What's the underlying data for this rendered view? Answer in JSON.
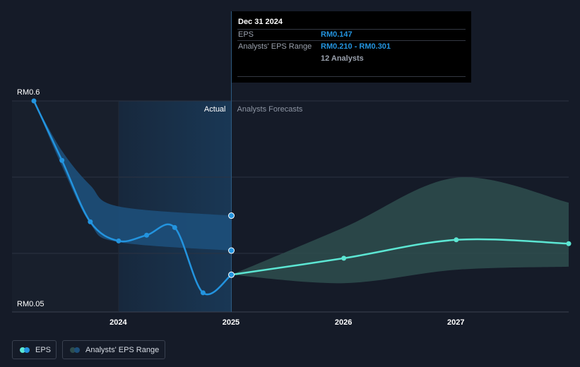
{
  "tooltip": {
    "date": "Dec 31 2024",
    "eps_label": "EPS",
    "eps_value": "RM0.147",
    "range_label": "Analysts' EPS Range",
    "range_value": "RM0.210 - RM0.301",
    "analysts": "12 Analysts"
  },
  "legend": {
    "eps": "EPS",
    "range": "Analysts' EPS Range"
  },
  "colors": {
    "background": "#151b28",
    "eps_line": "#2394df",
    "forecast_line": "#5ce6d3",
    "forecast_band": "#2e4d4d",
    "actual_band": "#1d4f7a",
    "grid": "#2c3342"
  },
  "chart_data": {
    "type": "line",
    "y_tick_labels": [
      "RM0.6",
      "RM0.05"
    ],
    "ylim": [
      0.05,
      0.6
    ],
    "x_tick_labels": [
      "2024",
      "2025",
      "2026",
      "2027"
    ],
    "x_range": [
      "2023-03-31",
      "2027-12-31"
    ],
    "section_labels": {
      "actual": "Actual",
      "forecast": "Analysts Forecasts"
    },
    "highlight_date": "2024-12-31",
    "actual_start": "2023-12-31",
    "series": [
      {
        "name": "EPS",
        "kind": "actual",
        "points": [
          {
            "date": "2023-03-31",
            "value": 0.6
          },
          {
            "date": "2023-06-30",
            "value": 0.445
          },
          {
            "date": "2023-09-30",
            "value": 0.285
          },
          {
            "date": "2023-12-31",
            "value": 0.235
          },
          {
            "date": "2024-03-31",
            "value": 0.25
          },
          {
            "date": "2024-06-30",
            "value": 0.27
          },
          {
            "date": "2024-09-30",
            "value": 0.1
          },
          {
            "date": "2024-12-31",
            "value": 0.147
          }
        ]
      },
      {
        "name": "EPS",
        "kind": "forecast",
        "points": [
          {
            "date": "2024-12-31",
            "value": 0.147
          },
          {
            "date": "2025-12-31",
            "value": 0.19
          },
          {
            "date": "2026-12-31",
            "value": 0.238
          },
          {
            "date": "2027-12-31",
            "value": 0.228
          }
        ]
      }
    ],
    "actual_range": {
      "name": "Analysts' EPS Range",
      "upper": [
        {
          "date": "2023-03-31",
          "value": 0.6
        },
        {
          "date": "2023-06-30",
          "value": 0.47
        },
        {
          "date": "2023-09-30",
          "value": 0.38
        },
        {
          "date": "2023-12-31",
          "value": 0.325
        },
        {
          "date": "2024-12-31",
          "value": 0.301
        }
      ],
      "lower": [
        {
          "date": "2023-03-31",
          "value": 0.6
        },
        {
          "date": "2023-06-30",
          "value": 0.43
        },
        {
          "date": "2023-09-30",
          "value": 0.28
        },
        {
          "date": "2023-12-31",
          "value": 0.232
        },
        {
          "date": "2024-12-31",
          "value": 0.21
        }
      ],
      "markers": [
        0.301,
        0.21
      ]
    },
    "forecast_range": {
      "name": "Analysts' EPS Range",
      "upper": [
        {
          "date": "2024-12-31",
          "value": 0.147
        },
        {
          "date": "2025-12-31",
          "value": 0.27
        },
        {
          "date": "2026-12-31",
          "value": 0.4
        },
        {
          "date": "2027-12-31",
          "value": 0.335
        }
      ],
      "lower": [
        {
          "date": "2024-12-31",
          "value": 0.147
        },
        {
          "date": "2025-12-31",
          "value": 0.125
        },
        {
          "date": "2026-12-31",
          "value": 0.16
        },
        {
          "date": "2027-12-31",
          "value": 0.168
        }
      ]
    },
    "grid": true,
    "legend_position": "bottom-left"
  }
}
